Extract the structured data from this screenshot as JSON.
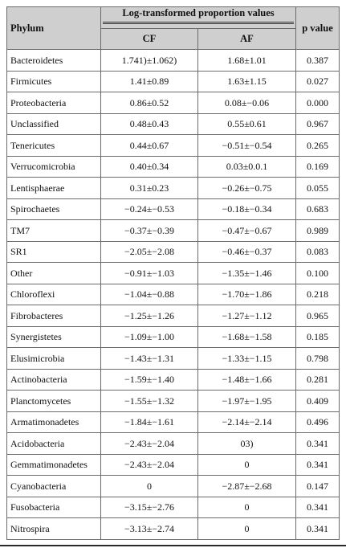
{
  "table": {
    "headers": {
      "phylum": "Phylum",
      "group": "Log-transformed proportion values",
      "cf": "CF",
      "af": "AF",
      "pvalue": "p value"
    },
    "rows": [
      {
        "phylum": "Bacteroidetes",
        "cf": "1.741)±1.062)",
        "af": "1.68±1.01",
        "p": "0.387"
      },
      {
        "phylum": "Firmicutes",
        "cf": "1.41±0.89",
        "af": "1.63±1.15",
        "p": "0.027"
      },
      {
        "phylum": "Proteobacteria",
        "cf": "0.86±0.52",
        "af": "0.08±−0.06",
        "p": "0.000"
      },
      {
        "phylum": "Unclassified",
        "cf": "0.48±0.43",
        "af": "0.55±0.61",
        "p": "0.967"
      },
      {
        "phylum": "Tenericutes",
        "cf": "0.44±0.67",
        "af": "−0.51±−0.54",
        "p": "0.265"
      },
      {
        "phylum": "Verrucomicrobia",
        "cf": "0.40±0.34",
        "af": "0.03±0.0.1",
        "p": "0.169"
      },
      {
        "phylum": "Lentisphaerae",
        "cf": "0.31±0.23",
        "af": "−0.26±−0.75",
        "p": "0.055"
      },
      {
        "phylum": "Spirochaetes",
        "cf": "−0.24±−0.53",
        "af": "−0.18±−0.34",
        "p": "0.683"
      },
      {
        "phylum": "TM7",
        "cf": "−0.37±−0.39",
        "af": "−0.47±−0.67",
        "p": "0.989"
      },
      {
        "phylum": "SR1",
        "cf": "−2.05±−2.08",
        "af": "−0.46±−0.37",
        "p": "0.083"
      },
      {
        "phylum": "Other",
        "cf": "−0.91±−1.03",
        "af": "−1.35±−1.46",
        "p": "0.100"
      },
      {
        "phylum": "Chloroflexi",
        "cf": "−1.04±−0.88",
        "af": "−1.70±−1.86",
        "p": "0.218"
      },
      {
        "phylum": "Fibrobacteres",
        "cf": "−1.25±−1.26",
        "af": "−1.27±−1.12",
        "p": "0.965"
      },
      {
        "phylum": "Synergistetes",
        "cf": "−1.09±−1.00",
        "af": "−1.68±−1.58",
        "p": "0.185"
      },
      {
        "phylum": "Elusimicrobia",
        "cf": "−1.43±−1.31",
        "af": "−1.33±−1.15",
        "p": "0.798"
      },
      {
        "phylum": "Actinobacteria",
        "cf": "−1.59±−1.40",
        "af": "−1.48±−1.66",
        "p": "0.281"
      },
      {
        "phylum": "Planctomycetes",
        "cf": "−1.55±−1.32",
        "af": "−1.97±−1.95",
        "p": "0.409"
      },
      {
        "phylum": "Armatimonadetes",
        "cf": "−1.84±−1.61",
        "af": "−2.14±−2.14",
        "p": "0.496"
      },
      {
        "phylum": "Acidobacteria",
        "cf": "−2.43±−2.04",
        "af": "03)",
        "p": "0.341"
      },
      {
        "phylum": "Gemmatimonadetes",
        "cf": "−2.43±−2.04",
        "af": "0",
        "p": "0.341"
      },
      {
        "phylum": "Cyanobacteria",
        "cf": "0",
        "af": "−2.87±−2.68",
        "p": "0.147"
      },
      {
        "phylum": "Fusobacteria",
        "cf": "−3.15±−2.76",
        "af": "0",
        "p": "0.341"
      },
      {
        "phylum": "Nitrospira",
        "cf": "−3.13±−2.74",
        "af": "0",
        "p": "0.341"
      }
    ]
  }
}
